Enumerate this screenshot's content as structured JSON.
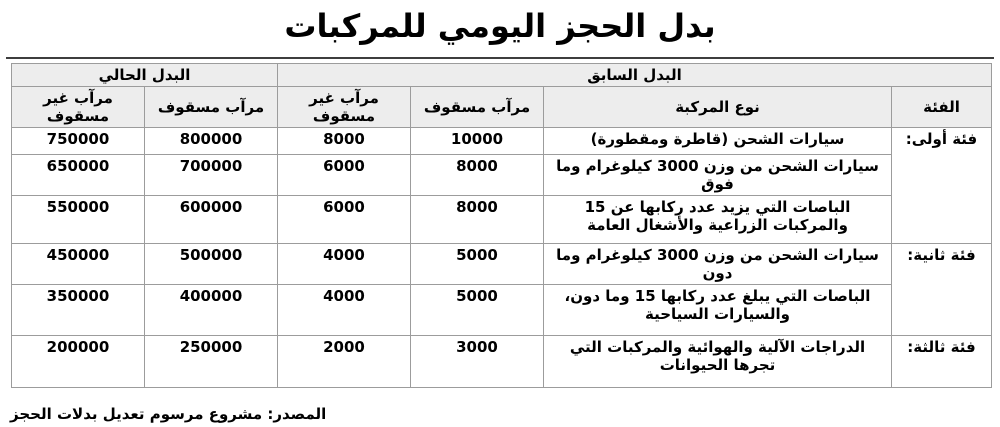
{
  "page": {
    "title": "بدل الحجز اليومي للمركبات",
    "source_note": "المصدر: مشروع مرسوم تعديل بدلات الحجز"
  },
  "table": {
    "group_headers": {
      "previous": "البدل السابق",
      "current": "البدل الحالي"
    },
    "column_headers": {
      "category": "الفئة",
      "vehicle_type": "نوع المركبة",
      "prev_covered": "مرآب مسقوف",
      "prev_uncovered": "مرآب غير مسقوف",
      "curr_covered": "مرآب مسقوف",
      "curr_uncovered": "مرآب غير مسقوف"
    },
    "rows": [
      {
        "category": "فئة أولى:",
        "vehicle": "سيارات الشحن (قاطرة ومقطورة)",
        "prev_covered": "10000",
        "prev_uncovered": "8000",
        "curr_covered": "800000",
        "curr_uncovered": "750000"
      },
      {
        "vehicle": "سيارات الشحن من وزن 3000 كيلوغرام وما فوق",
        "prev_covered": "8000",
        "prev_uncovered": "6000",
        "curr_covered": "700000",
        "curr_uncovered": "650000"
      },
      {
        "vehicle": "الباصات التي يزيد عدد ركابها عن 15 والمركبات الزراعية والأشغال العامة",
        "prev_covered": "8000",
        "prev_uncovered": "6000",
        "curr_covered": "600000",
        "curr_uncovered": "550000"
      },
      {
        "category": "فئة ثانية:",
        "vehicle": "سيارات الشحن من وزن 3000 كيلوغرام وما دون",
        "prev_covered": "5000",
        "prev_uncovered": "4000",
        "curr_covered": "500000",
        "curr_uncovered": "450000"
      },
      {
        "vehicle": "الباصات التي يبلغ عدد ركابها 15 وما دون، والسيارات السياحية",
        "prev_covered": "5000",
        "prev_uncovered": "4000",
        "curr_covered": "400000",
        "curr_uncovered": "350000"
      },
      {
        "category": "فئة ثالثة:",
        "vehicle": "الدراجات الآلية والهوائية والمركبات التي تجرها الحيوانات",
        "prev_covered": "3000",
        "prev_uncovered": "2000",
        "curr_covered": "250000",
        "curr_uncovered": "200000"
      }
    ],
    "colors": {
      "shaded_row_bg": "#ededed",
      "header_bg": "#ededed",
      "border": "#9c9c9c",
      "top_rule": "#3d3d3d",
      "text": "#000000"
    }
  }
}
